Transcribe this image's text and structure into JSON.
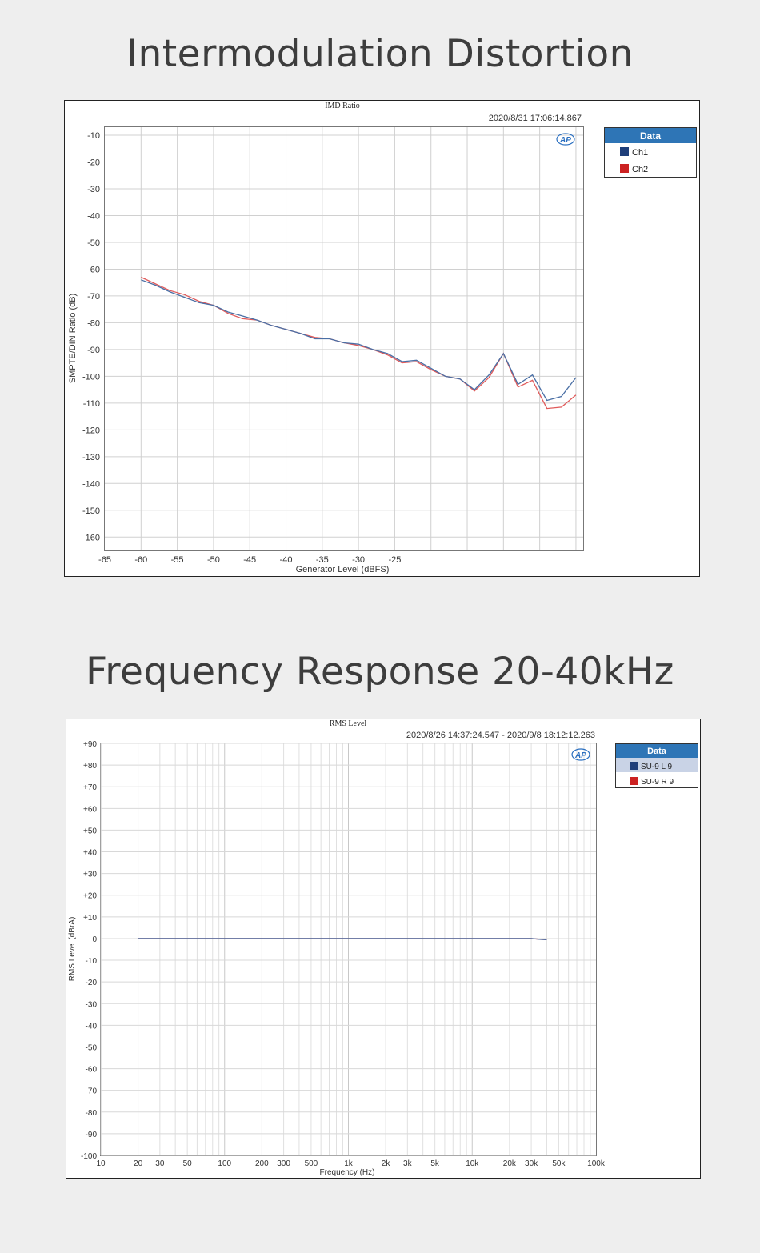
{
  "headings": {
    "imd": "Intermodulation Distortion",
    "freq": "Frequency Response 20-40kHz"
  },
  "chart_data": [
    {
      "type": "line",
      "title": "IMD Ratio",
      "timestamp": "2020/8/31 17:06:14.867",
      "xlabel": "Generator Level (dBFS)",
      "ylabel": "SMPTE/DIN Ratio (dB)",
      "xlim": [
        -65,
        1
      ],
      "ylim": [
        -165,
        -7
      ],
      "x_ticks": [
        -65,
        -60,
        -55,
        -50,
        -45,
        -40,
        -35,
        -30,
        -25
      ],
      "y_ticks": [
        -10,
        -20,
        -30,
        -40,
        -50,
        -60,
        -70,
        -80,
        -90,
        -100,
        -110,
        -120,
        -130,
        -140,
        -150,
        -160
      ],
      "grid": true,
      "logo": "AP",
      "legend": {
        "title": "Data",
        "position": "top-right"
      },
      "series": [
        {
          "name": "Ch1",
          "color": "#4a6fa5",
          "legend_color": "#1f3f7a",
          "x": [
            -60,
            -58,
            -56,
            -54,
            -52,
            -50,
            -48,
            -46,
            -44,
            -42,
            -40,
            -38,
            -36,
            -34,
            -32,
            -30,
            -28,
            -26,
            -24,
            -22,
            -20,
            -18,
            -16,
            -14,
            -12,
            -10,
            -8,
            -6,
            -4,
            -2,
            0
          ],
          "y": [
            -64,
            -66,
            -68.5,
            -70.5,
            -72.5,
            -73.5,
            -76,
            -77.5,
            -79,
            -81,
            -82.5,
            -84,
            -86,
            -86,
            -87.5,
            -88,
            -90,
            -91.5,
            -94.5,
            -94,
            -97,
            -100,
            -101,
            -105,
            -99.5,
            -91.5,
            -103,
            -99.5,
            -109,
            -107.5,
            -100.5
          ]
        },
        {
          "name": "Ch2",
          "color": "#e05a5a",
          "legend_color": "#cc2222",
          "x": [
            -60,
            -58,
            -56,
            -54,
            -52,
            -50,
            -48,
            -46,
            -44,
            -42,
            -40,
            -38,
            -36,
            -34,
            -32,
            -30,
            -28,
            -26,
            -24,
            -22,
            -20,
            -18,
            -16,
            -14,
            -12,
            -10,
            -8,
            -6,
            -4,
            -2,
            0
          ],
          "y": [
            -63,
            -65.5,
            -68,
            -69.5,
            -72,
            -73.5,
            -76.5,
            -78.5,
            -79,
            -81,
            -82.5,
            -84,
            -85.5,
            -86,
            -87.5,
            -88.5,
            -90,
            -92,
            -95,
            -94.5,
            -97.5,
            -100,
            -101,
            -105.5,
            -100.5,
            -91.5,
            -104,
            -101.5,
            -112,
            -111.5,
            -107
          ]
        }
      ]
    },
    {
      "type": "line",
      "title": "RMS Level",
      "timestamp": "2020/8/26 14:37:24.547 - 2020/9/8 18:12:12.263",
      "xlabel": "Frequency (Hz)",
      "ylabel": "RMS Level (dBrA)",
      "x_scale": "log",
      "xlim": [
        10,
        100000
      ],
      "ylim": [
        -100,
        90
      ],
      "x_tick_values": [
        10,
        20,
        30,
        50,
        100,
        200,
        300,
        500,
        1000,
        2000,
        3000,
        5000,
        10000,
        20000,
        30000,
        50000,
        100000
      ],
      "x_tick_labels": [
        "10",
        "20",
        "30",
        "50",
        "100",
        "200",
        "300",
        "500",
        "1k",
        "2k",
        "3k",
        "5k",
        "10k",
        "20k",
        "30k",
        "50k",
        "100k"
      ],
      "y_ticks": [
        90,
        80,
        70,
        60,
        50,
        40,
        30,
        20,
        10,
        0,
        -10,
        -20,
        -30,
        -40,
        -50,
        -60,
        -70,
        -80,
        -90,
        -100
      ],
      "y_tick_labels": [
        "+90",
        "+80",
        "+70",
        "+60",
        "+50",
        "+40",
        "+30",
        "+20",
        "+10",
        "0",
        "-10",
        "-20",
        "-30",
        "-40",
        "-50",
        "-60",
        "-70",
        "-80",
        "-90",
        "-100"
      ],
      "grid": true,
      "logo": "AP",
      "legend": {
        "title": "Data",
        "position": "top-right"
      },
      "series": [
        {
          "name": "SU-9 L 9",
          "color": "#4a6fa5",
          "legend_color": "#1f3f7a",
          "x": [
            20,
            100,
            1000,
            10000,
            20000,
            30000,
            35000,
            40000
          ],
          "y": [
            0,
            0,
            0,
            0,
            0,
            0,
            -0.3,
            -0.5
          ]
        },
        {
          "name": "SU-9 R 9",
          "color": "#e05a5a",
          "legend_color": "#cc2222",
          "x": [
            20,
            100,
            1000,
            10000,
            20000,
            30000,
            35000,
            40000
          ],
          "y": [
            0,
            0,
            0,
            0,
            0,
            0,
            -0.3,
            -0.5
          ]
        }
      ]
    }
  ]
}
